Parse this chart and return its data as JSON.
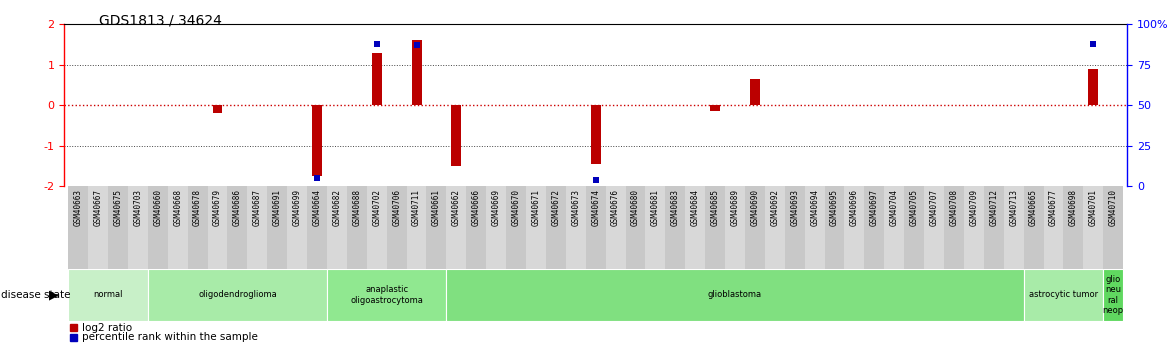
{
  "title": "GDS1813 / 34624",
  "samples": [
    "GSM40663",
    "GSM40667",
    "GSM40675",
    "GSM40703",
    "GSM40660",
    "GSM40668",
    "GSM40678",
    "GSM40679",
    "GSM40686",
    "GSM40687",
    "GSM40691",
    "GSM40699",
    "GSM40664",
    "GSM40682",
    "GSM40688",
    "GSM40702",
    "GSM40706",
    "GSM40711",
    "GSM40661",
    "GSM40662",
    "GSM40666",
    "GSM40669",
    "GSM40670",
    "GSM40671",
    "GSM40672",
    "GSM40673",
    "GSM40674",
    "GSM40676",
    "GSM40680",
    "GSM40681",
    "GSM40683",
    "GSM40684",
    "GSM40685",
    "GSM40689",
    "GSM40690",
    "GSM40692",
    "GSM40693",
    "GSM40694",
    "GSM40695",
    "GSM40696",
    "GSM40697",
    "GSM40704",
    "GSM40705",
    "GSM40707",
    "GSM40708",
    "GSM40709",
    "GSM40712",
    "GSM40713",
    "GSM40665",
    "GSM40677",
    "GSM40698",
    "GSM40701",
    "GSM40710"
  ],
  "log2_ratio": [
    0,
    0,
    0,
    0,
    0,
    0,
    0,
    -0.18,
    0,
    0,
    0,
    0,
    -1.75,
    0,
    0,
    1.3,
    0,
    1.6,
    0,
    -1.5,
    0,
    0,
    0,
    0,
    0,
    0,
    -1.45,
    0,
    0,
    0,
    0,
    0,
    -0.15,
    0,
    0.65,
    0,
    0,
    0,
    0,
    0,
    0,
    0,
    0,
    0,
    0,
    0,
    0,
    0,
    0,
    0,
    0,
    0.9,
    0
  ],
  "percentile_rank_pct": [
    null,
    null,
    null,
    null,
    null,
    null,
    null,
    null,
    null,
    null,
    null,
    null,
    5,
    null,
    null,
    88,
    null,
    87,
    null,
    null,
    null,
    null,
    null,
    null,
    null,
    null,
    4,
    null,
    null,
    null,
    null,
    null,
    null,
    null,
    null,
    null,
    null,
    null,
    null,
    null,
    null,
    null,
    null,
    null,
    null,
    null,
    null,
    null,
    null,
    null,
    null,
    88,
    null
  ],
  "disease_groups": [
    {
      "label": "normal",
      "start": 0,
      "end": 3
    },
    {
      "label": "oligodendroglioma",
      "start": 4,
      "end": 12
    },
    {
      "label": "anaplastic\noligoastrocytoma",
      "start": 13,
      "end": 18
    },
    {
      "label": "glioblastoma",
      "start": 19,
      "end": 47
    },
    {
      "label": "astrocytic tumor",
      "start": 48,
      "end": 51
    },
    {
      "label": "glio\nneu\nral\nneop",
      "start": 52,
      "end": 52
    }
  ],
  "group_colors": [
    "#c8f0c8",
    "#a8eba8",
    "#90e890",
    "#80e080",
    "#a8eba8",
    "#60d860"
  ],
  "ylim": [
    -2,
    2
  ],
  "y2lim": [
    0,
    100
  ],
  "bar_color": "#bb0000",
  "dot_color": "#0000bb",
  "zero_line_color": "#cc0000",
  "grid_color": "#444444",
  "title_fontsize": 10,
  "tick_fontsize": 5.5,
  "band_color_light": "#d8f8d8",
  "band_color_dark": "#90e890"
}
